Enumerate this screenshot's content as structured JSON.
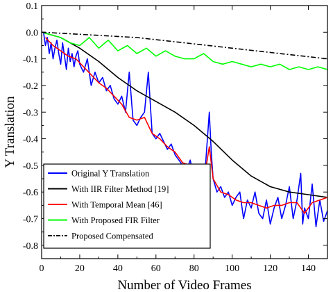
{
  "chart_data": {
    "type": "line",
    "title": "",
    "xlabel": "Number of Video Frames",
    "ylabel": "Y Translation",
    "xlim": [
      0,
      150
    ],
    "ylim": [
      -0.85,
      0.1
    ],
    "xticks": [
      0,
      20,
      40,
      60,
      80,
      100,
      120,
      140
    ],
    "yticks": [
      0.1,
      0.0,
      -0.1,
      -0.2,
      -0.3,
      -0.4,
      -0.5,
      -0.6,
      -0.7,
      -0.8
    ],
    "ytick_labels": [
      "0.1",
      "0.0",
      "-0.1",
      "-0.2",
      "-0.3",
      "-0.4",
      "-0.5",
      "-0.6",
      "-0.7",
      "-0.8"
    ],
    "grid": false,
    "legend_position": "bottom-left",
    "series": [
      {
        "name": "Original  Y Translation",
        "color": "#0000ff",
        "style": "solid",
        "x": [
          1,
          2,
          3,
          4,
          5,
          6,
          7,
          8,
          9,
          10,
          11,
          12,
          13,
          14,
          15,
          16,
          17,
          18,
          19,
          20,
          22,
          24,
          26,
          28,
          30,
          32,
          34,
          36,
          38,
          40,
          42,
          44,
          46,
          48,
          50,
          52,
          54,
          56,
          58,
          60,
          62,
          64,
          66,
          68,
          70,
          72,
          74,
          76,
          78,
          80,
          82,
          84,
          86,
          88,
          89,
          90,
          92,
          94,
          96,
          98,
          100,
          102,
          104,
          106,
          108,
          110,
          112,
          114,
          116,
          118,
          120,
          122,
          124,
          126,
          128,
          130,
          132,
          134,
          136,
          137,
          138,
          140,
          142,
          144,
          146,
          148,
          150
        ],
        "y": [
          0.0,
          -0.05,
          -0.02,
          -0.08,
          -0.04,
          -0.1,
          -0.06,
          -0.03,
          -0.08,
          -0.12,
          -0.04,
          -0.09,
          -0.14,
          -0.06,
          -0.11,
          -0.08,
          -0.13,
          -0.09,
          -0.07,
          -0.12,
          -0.15,
          -0.1,
          -0.2,
          -0.15,
          -0.19,
          -0.17,
          -0.22,
          -0.2,
          -0.25,
          -0.27,
          -0.24,
          -0.3,
          -0.15,
          -0.33,
          -0.35,
          -0.32,
          -0.3,
          -0.15,
          -0.38,
          -0.4,
          -0.38,
          -0.41,
          -0.44,
          -0.42,
          -0.46,
          -0.48,
          -0.5,
          -0.52,
          -0.48,
          -0.55,
          -0.58,
          -0.52,
          -0.5,
          -0.3,
          -0.45,
          -0.55,
          -0.6,
          -0.58,
          -0.62,
          -0.6,
          -0.65,
          -0.62,
          -0.6,
          -0.7,
          -0.63,
          -0.66,
          -0.6,
          -0.68,
          -0.7,
          -0.63,
          -0.72,
          -0.66,
          -0.62,
          -0.7,
          -0.65,
          -0.58,
          -0.7,
          -0.63,
          -0.53,
          -0.72,
          -0.66,
          -0.7,
          -0.57,
          -0.73,
          -0.63,
          -0.71,
          -0.67
        ]
      },
      {
        "name": "With IIR Filter Method  [19]",
        "color": "#000000",
        "style": "solid",
        "x": [
          0,
          10,
          20,
          30,
          40,
          50,
          60,
          70,
          80,
          90,
          100,
          110,
          120,
          130,
          140,
          150
        ],
        "y": [
          0.0,
          -0.02,
          -0.06,
          -0.11,
          -0.17,
          -0.22,
          -0.26,
          -0.3,
          -0.35,
          -0.41,
          -0.48,
          -0.54,
          -0.58,
          -0.6,
          -0.61,
          -0.62
        ]
      },
      {
        "name": "With Temporal Mean  [46]",
        "color": "#ff0000",
        "style": "solid",
        "x": [
          2,
          6,
          10,
          14,
          18,
          22,
          26,
          30,
          34,
          38,
          42,
          46,
          50,
          54,
          58,
          62,
          66,
          70,
          74,
          78,
          82,
          86,
          88,
          90,
          94,
          98,
          102,
          106,
          110,
          114,
          118,
          122,
          126,
          130,
          134,
          138,
          142,
          146,
          150
        ],
        "y": [
          -0.02,
          -0.05,
          -0.07,
          -0.09,
          -0.1,
          -0.13,
          -0.16,
          -0.19,
          -0.21,
          -0.24,
          -0.27,
          -0.32,
          -0.33,
          -0.32,
          -0.38,
          -0.4,
          -0.43,
          -0.45,
          -0.49,
          -0.5,
          -0.55,
          -0.52,
          -0.43,
          -0.55,
          -0.6,
          -0.61,
          -0.63,
          -0.64,
          -0.64,
          -0.65,
          -0.66,
          -0.65,
          -0.65,
          -0.64,
          -0.64,
          -0.68,
          -0.64,
          -0.63,
          -0.62
        ]
      },
      {
        "name": "With Proposed FIR Filter",
        "color": "#00ff00",
        "style": "solid",
        "x": [
          0,
          5,
          10,
          15,
          20,
          25,
          30,
          35,
          40,
          45,
          50,
          55,
          60,
          65,
          70,
          75,
          80,
          85,
          90,
          95,
          100,
          105,
          110,
          115,
          120,
          125,
          130,
          135,
          140,
          145,
          150
        ],
        "y": [
          0.0,
          -0.01,
          -0.02,
          -0.04,
          -0.05,
          -0.02,
          -0.06,
          -0.03,
          -0.07,
          -0.05,
          -0.08,
          -0.06,
          -0.09,
          -0.07,
          -0.09,
          -0.1,
          -0.1,
          -0.08,
          -0.11,
          -0.12,
          -0.11,
          -0.12,
          -0.13,
          -0.12,
          -0.13,
          -0.12,
          -0.14,
          -0.13,
          -0.14,
          -0.13,
          -0.14
        ]
      },
      {
        "name": "Proposed Compensated",
        "color": "#000000",
        "style": "dash-dot",
        "x": [
          0,
          25,
          50,
          75,
          100,
          125,
          150
        ],
        "y": [
          0.0,
          -0.01,
          -0.02,
          -0.04,
          -0.06,
          -0.08,
          -0.1
        ]
      }
    ]
  }
}
